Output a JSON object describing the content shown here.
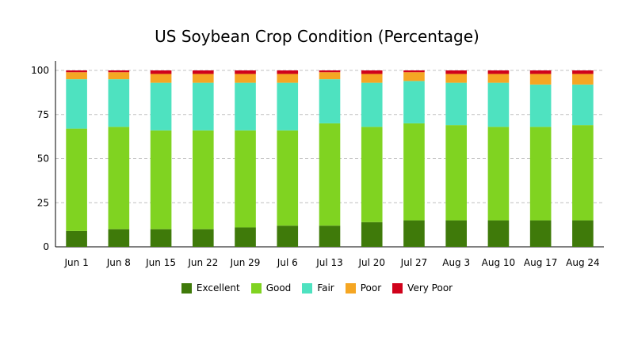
{
  "chart_data": {
    "type": "bar",
    "stacked": true,
    "title": "US Soybean Crop Condition (Percentage)",
    "xlabel": "",
    "ylabel": "",
    "ylim": [
      0,
      100
    ],
    "yticks": [
      0,
      25,
      50,
      75,
      100
    ],
    "grid": "horizontal dashed",
    "legend_position": "bottom",
    "categories": [
      "Jun 1",
      "Jun 8",
      "Jun 15",
      "Jun 22",
      "Jun 29",
      "Jul 6",
      "Jul 13",
      "Jul 20",
      "Jul 27",
      "Aug 3",
      "Aug 10",
      "Aug 17",
      "Aug 24"
    ],
    "series": [
      {
        "name": "Excellent",
        "color": "#3f7a0a",
        "values": [
          9,
          10,
          10,
          10,
          11,
          12,
          12,
          14,
          15,
          15,
          15,
          15,
          15
        ]
      },
      {
        "name": "Good",
        "color": "#80d321",
        "values": [
          58,
          58,
          56,
          56,
          55,
          54,
          58,
          54,
          55,
          54,
          53,
          53,
          54
        ]
      },
      {
        "name": "Fair",
        "color": "#4ee2c0",
        "values": [
          28,
          27,
          27,
          27,
          27,
          27,
          25,
          25,
          24,
          24,
          25,
          24,
          23
        ]
      },
      {
        "name": "Poor",
        "color": "#f5a623",
        "values": [
          4,
          4,
          5,
          5,
          5,
          5,
          4,
          5,
          5,
          5,
          5,
          6,
          6
        ]
      },
      {
        "name": "Very Poor",
        "color": "#d0021b",
        "values": [
          1,
          1,
          2,
          2,
          2,
          2,
          1,
          2,
          1,
          2,
          2,
          2,
          2
        ]
      }
    ]
  }
}
